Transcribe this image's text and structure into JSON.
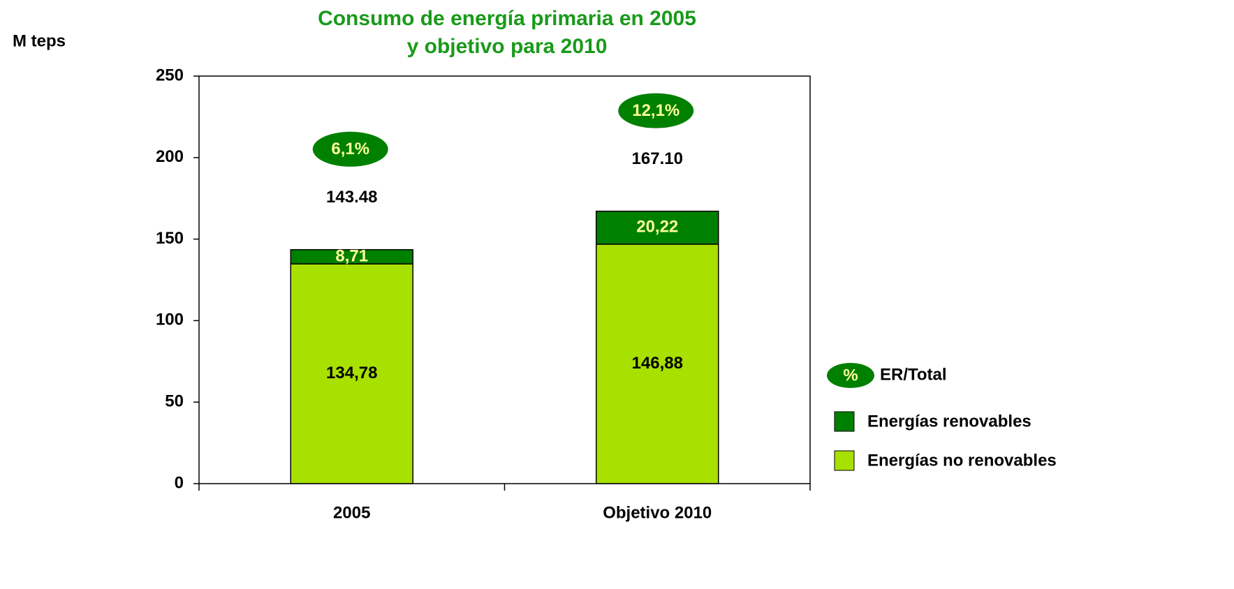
{
  "chart_data": {
    "type": "stacked_bar",
    "title": [
      "Consumo de energía primaria en 2005",
      "y objetivo para 2010"
    ],
    "y_label": "M teps",
    "categories": [
      "2005",
      "Objetivo 2010"
    ],
    "series": [
      {
        "name": "Energías no renovables",
        "color": "#a8e000",
        "values": [
          134.78,
          146.88
        ],
        "value_labels": [
          "134,78",
          "146,88"
        ]
      },
      {
        "name": "Energías renovables",
        "color": "#008000",
        "values": [
          8.71,
          20.22
        ],
        "value_labels": [
          "8,71",
          "20,22"
        ]
      }
    ],
    "totals": [
      143.48,
      167.1
    ],
    "total_labels": [
      "143.48",
      "167.10"
    ],
    "shares": [
      6.1,
      12.1
    ],
    "share_labels": [
      "6,1%",
      "12,1%"
    ],
    "share_legend": {
      "symbol": "%",
      "name": "ER/Total",
      "color": "#008000"
    },
    "ylim": [
      0,
      250
    ],
    "yticks": [
      0,
      50,
      100,
      150,
      200,
      250
    ],
    "grid": false,
    "legend": "right"
  }
}
